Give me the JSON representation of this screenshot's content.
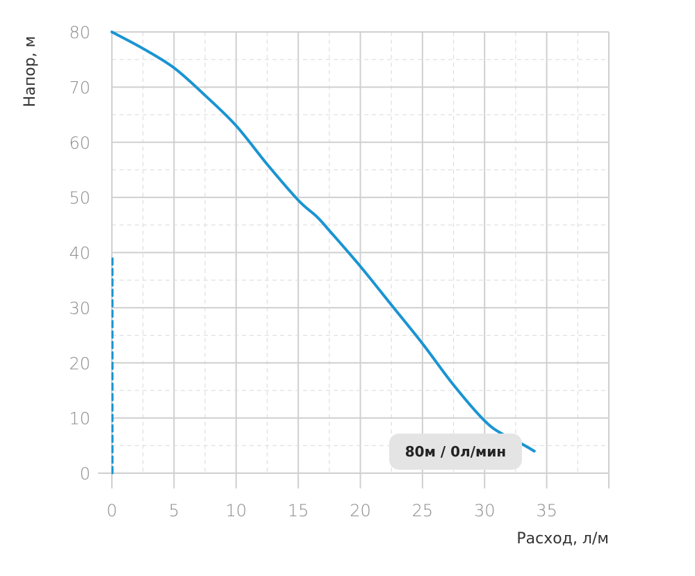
{
  "chart_data": {
    "type": "line",
    "xlabel": "Расход, л/м",
    "ylabel": "Напор, м",
    "xlim": [
      0,
      40
    ],
    "ylim": [
      0,
      80
    ],
    "x_ticks": [
      "0",
      "5",
      "10",
      "15",
      "20",
      "25",
      "30",
      "35"
    ],
    "y_ticks": [
      "0",
      "10",
      "20",
      "30",
      "40",
      "50",
      "60",
      "70",
      "80"
    ],
    "grid": true,
    "series": [
      {
        "style": "solid",
        "color": "#1a94d2",
        "x": [
          0,
          2.5,
          5,
          7.5,
          10,
          12.5,
          15,
          16.5,
          17.5,
          20,
          22.5,
          25,
          27.5,
          30,
          31.5,
          33,
          34
        ],
        "y": [
          80,
          77,
          73.5,
          68.5,
          63,
          56,
          49.5,
          46.5,
          44,
          37.5,
          30.5,
          23.5,
          16,
          9.5,
          7,
          5.3,
          4
        ]
      },
      {
        "style": "dashed",
        "color": "#1a94d2",
        "x": [
          0.05,
          0.05
        ],
        "y": [
          0,
          39
        ]
      }
    ],
    "annotation": {
      "text": "80м / 0л/мин"
    }
  }
}
